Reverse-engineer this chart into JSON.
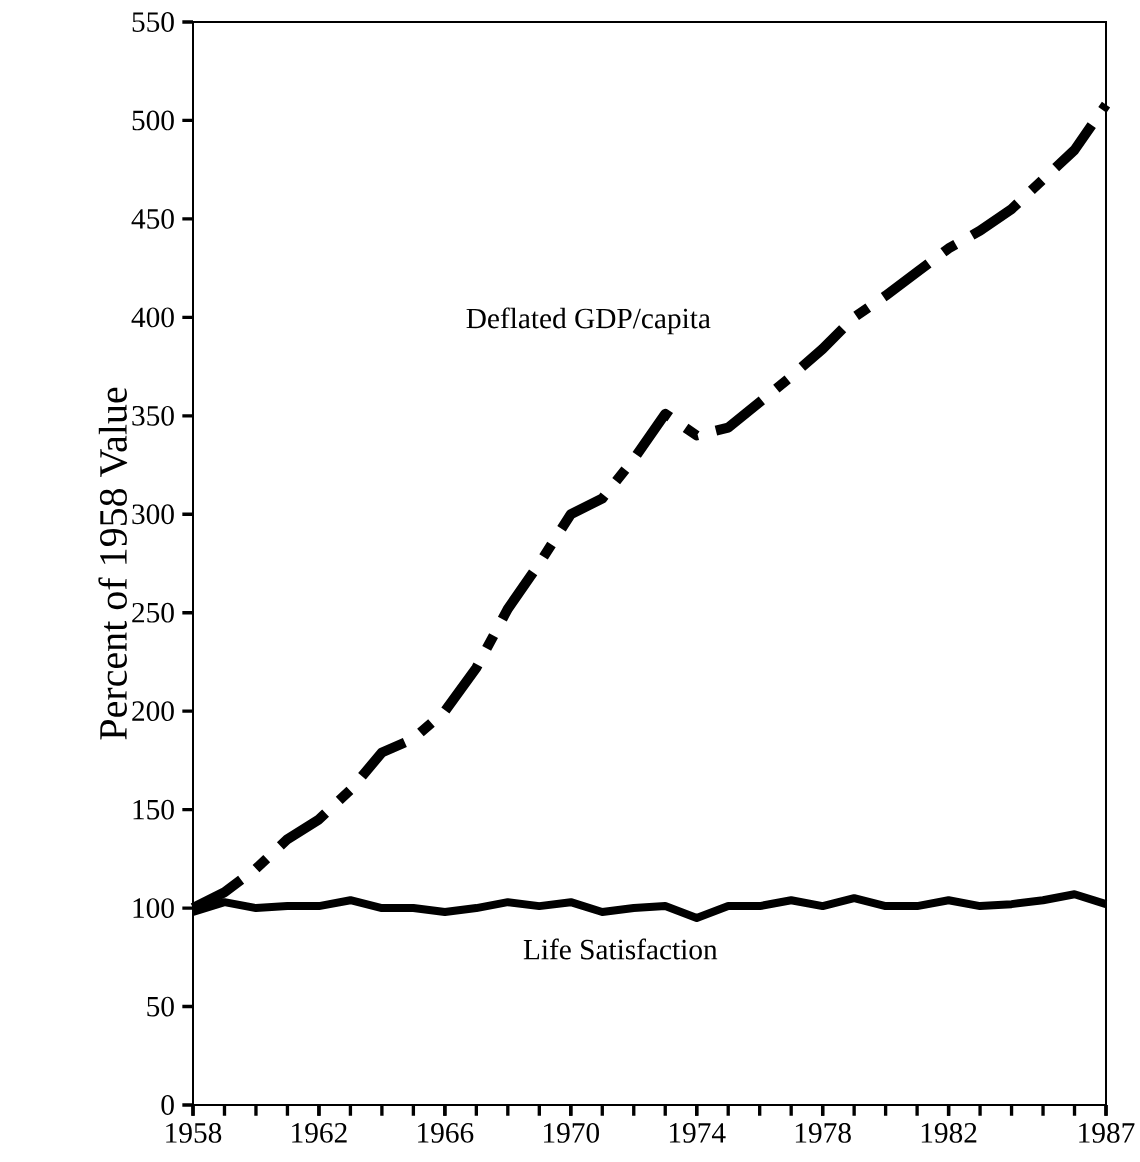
{
  "chart_data": {
    "type": "line",
    "ylabel": "Percent of 1958 Value",
    "x": [
      1958,
      1959,
      1960,
      1961,
      1962,
      1963,
      1964,
      1965,
      1966,
      1967,
      1968,
      1969,
      1970,
      1971,
      1972,
      1973,
      1974,
      1975,
      1976,
      1977,
      1978,
      1979,
      1980,
      1981,
      1982,
      1983,
      1984,
      1985,
      1986,
      1987
    ],
    "series": [
      {
        "name": "Deflated GDP/capita",
        "color": "#000000",
        "line_style": "dashdot",
        "values": [
          100,
          108,
          120,
          135,
          145,
          160,
          179,
          186,
          200,
          222,
          252,
          275,
          300,
          308,
          328,
          351,
          340,
          344,
          357,
          370,
          384,
          400,
          411,
          423,
          435,
          444,
          455,
          470,
          485,
          508
        ]
      },
      {
        "name": "Life Satisfaction",
        "color": "#000000",
        "line_style": "solid",
        "values": [
          98,
          103,
          100,
          101,
          101,
          104,
          100,
          100,
          98,
          100,
          103,
          101,
          103,
          98,
          100,
          101,
          95,
          101,
          101,
          104,
          101,
          105,
          101,
          101,
          104,
          101,
          102,
          104,
          107,
          102
        ]
      }
    ],
    "xlim": [
      1958,
      1987
    ],
    "xticks": [
      1958,
      1962,
      1966,
      1970,
      1974,
      1978,
      1982,
      1987
    ],
    "ylim": [
      0,
      550
    ],
    "yticks": [
      0,
      50,
      100,
      150,
      200,
      250,
      300,
      350,
      400,
      450,
      500,
      550
    ],
    "grid": false,
    "legend": false,
    "marker": "none"
  }
}
